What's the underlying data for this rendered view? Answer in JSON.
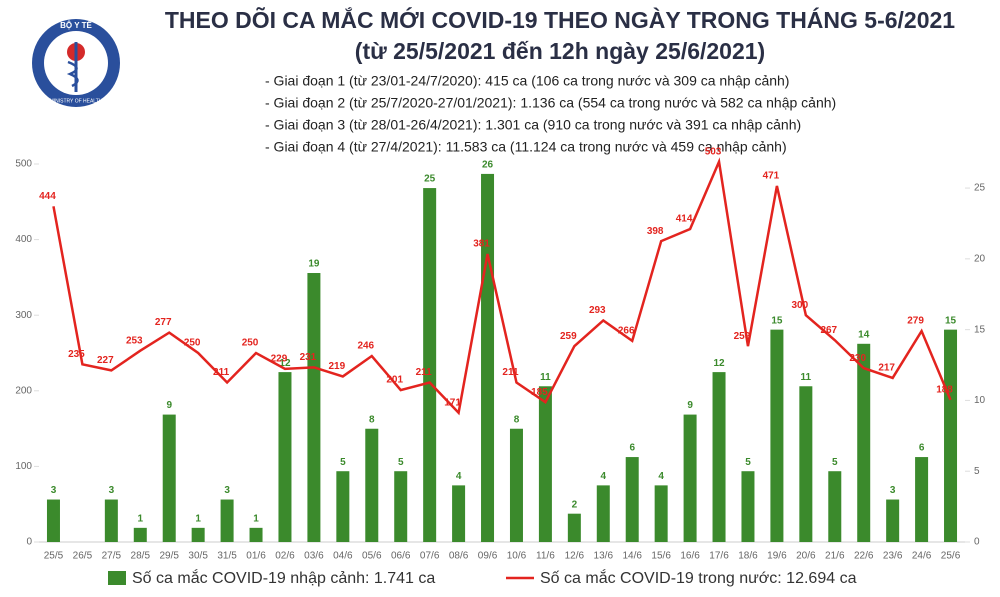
{
  "logo": {
    "top": "BỘ Y TẾ",
    "bottom": "MINISTRY OF HEALTH"
  },
  "chart_data": {
    "type": "bar-line",
    "title": "THEO DÕI CA MẮC MỚI COVID-19 THEO NGÀY TRONG THÁNG 5-6/2021",
    "subtitle": "(từ 25/5/2021 đến 12h ngày 25/6/2021)",
    "notes": [
      "- Giai đoạn 1 (từ 23/01-24/7/2020): 415 ca (106 ca trong nước và 309 ca nhập cảnh)",
      "- Giai đoạn 2 (từ 25/7/2020-27/01/2021): 1.136 ca (554 ca trong nước và 582 ca nhập cảnh)",
      "- Giai đoạn 3 (từ 28/01-26/4/2021): 1.301 ca (910 ca trong nước và 391 ca nhập cảnh)",
      "- Giai đoạn 4 (từ 27/4/2021): 11.583 ca (11.124 ca trong nước và 459 ca nhập cảnh)"
    ],
    "categories": [
      "25/5",
      "26/5",
      "27/5",
      "28/5",
      "29/5",
      "30/5",
      "31/5",
      "01/6",
      "02/6",
      "03/6",
      "04/6",
      "05/6",
      "06/6",
      "07/6",
      "08/6",
      "09/6",
      "10/6",
      "11/6",
      "12/6",
      "13/6",
      "14/6",
      "15/6",
      "16/6",
      "17/6",
      "18/6",
      "19/6",
      "20/6",
      "21/6",
      "22/6",
      "23/6",
      "24/6",
      "25/6"
    ],
    "series": [
      {
        "name": "Số ca mắc COVID-19 nhập cảnh: 1.741 ca",
        "type": "bar",
        "axis": "y2",
        "color": "#3b8a2c",
        "values": [
          3,
          null,
          3,
          1,
          9,
          1,
          3,
          1,
          12,
          19,
          5,
          8,
          5,
          25,
          4,
          26,
          8,
          11,
          2,
          4,
          6,
          4,
          9,
          12,
          5,
          15,
          11,
          5,
          14,
          3,
          6,
          15
        ]
      },
      {
        "name": "Số ca mắc COVID-19 trong nước: 12.694 ca",
        "type": "line",
        "color": "#e3241f",
        "values": [
          444,
          235,
          227,
          253,
          277,
          250,
          211,
          250,
          229,
          231,
          219,
          246,
          201,
          211,
          171,
          381,
          211,
          185,
          259,
          293,
          266,
          398,
          414,
          503,
          259,
          471,
          300,
          267,
          230,
          217,
          279,
          188
        ]
      }
    ],
    "ylim": [
      0,
      500
    ],
    "yticks": [
      0,
      100,
      200,
      300,
      400,
      500
    ],
    "y2lim": [
      0,
      26.7
    ],
    "y2ticks": [
      0,
      5,
      10,
      15,
      20,
      25
    ]
  }
}
